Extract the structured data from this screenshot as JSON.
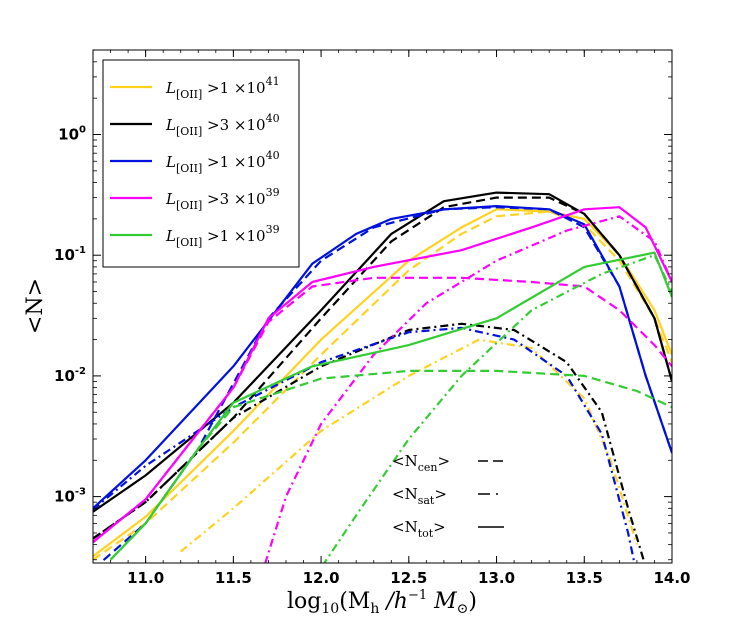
{
  "chart_data": {
    "type": "line",
    "xlabel": "log10(Mh /h−1 M⊙)",
    "ylabel": "<N>",
    "xlim": [
      10.7,
      14.0
    ],
    "ylim_log10": [
      -3.55,
      0.7
    ],
    "xticks": [
      11.0,
      11.5,
      12.0,
      12.5,
      13.0,
      13.5,
      14.0
    ],
    "xtick_labels": [
      "11.0",
      "11.5",
      "12.0",
      "12.5",
      "13.0",
      "13.5",
      "14.0"
    ],
    "yticks": [
      {
        "exp": 0,
        "base": "10",
        "sup": "0"
      },
      {
        "exp": -1,
        "base": "10",
        "sup": "-1"
      },
      {
        "exp": -2,
        "base": "10",
        "sup": "-2"
      },
      {
        "exp": -3,
        "base": "10",
        "sup": "-3"
      }
    ],
    "legend": {
      "location": "upper-left",
      "entries": [
        {
          "color": "#ffd21f",
          "prefix": "L",
          "sub": "[OII]",
          "text": ">1 ×10",
          "sup": "41"
        },
        {
          "color": "#000000",
          "prefix": "L",
          "sub": "[OII]",
          "text": ">3 ×10",
          "sup": "40"
        },
        {
          "color": "#0011dd",
          "prefix": "L",
          "sub": "[OII]",
          "text": ">1 ×10",
          "sup": "40"
        },
        {
          "color": "#ff00ff",
          "prefix": "L",
          "sub": "[OII]",
          "text": ">3 ×10",
          "sup": "39"
        },
        {
          "color": "#33cc33",
          "prefix": "L",
          "sub": "[OII]",
          "text": ">1 ×10",
          "sup": "39"
        }
      ]
    },
    "style_key": [
      {
        "label_main": "<N",
        "label_sub": "cen",
        "label_end": ">",
        "style": "dashed"
      },
      {
        "label_main": "<N",
        "label_sub": "sat",
        "label_end": ">",
        "style": "dashdot"
      },
      {
        "label_main": "<N",
        "label_sub": "tot",
        "label_end": ">",
        "style": "solid"
      }
    ],
    "series": [
      {
        "name": "L[OII]>1e41 tot",
        "color": "#ffd21f",
        "style": "solid",
        "points": [
          [
            10.7,
            0.00032
          ],
          [
            11.0,
            0.00068
          ],
          [
            11.5,
            0.0035
          ],
          [
            12.0,
            0.02
          ],
          [
            12.5,
            0.09
          ],
          [
            12.8,
            0.17
          ],
          [
            13.0,
            0.24
          ],
          [
            13.3,
            0.23
          ],
          [
            13.5,
            0.2
          ],
          [
            13.7,
            0.1
          ],
          [
            13.9,
            0.035
          ],
          [
            14.0,
            0.015
          ]
        ]
      },
      {
        "name": "L[OII]>1e41 cen",
        "color": "#ffd21f",
        "style": "dashed",
        "points": [
          [
            10.7,
            0.0003
          ],
          [
            11.0,
            0.0006
          ],
          [
            11.5,
            0.0028
          ],
          [
            12.0,
            0.015
          ],
          [
            12.5,
            0.075
          ],
          [
            12.8,
            0.15
          ],
          [
            13.0,
            0.21
          ],
          [
            13.3,
            0.23
          ],
          [
            13.5,
            0.18
          ],
          [
            13.7,
            0.09
          ],
          [
            13.9,
            0.03
          ],
          [
            14.0,
            0.013
          ]
        ]
      },
      {
        "name": "L[OII]>1e41 sat",
        "color": "#ffd21f",
        "style": "dashdot",
        "points": [
          [
            11.2,
            0.00035
          ],
          [
            11.5,
            0.0008
          ],
          [
            12.0,
            0.0035
          ],
          [
            12.5,
            0.01
          ],
          [
            12.9,
            0.02
          ],
          [
            13.2,
            0.017
          ],
          [
            13.5,
            0.0065
          ],
          [
            13.65,
            0.002
          ],
          [
            13.8,
            0.0004
          ]
        ]
      },
      {
        "name": "L[OII]>3e40 tot",
        "color": "#000000",
        "style": "solid",
        "points": [
          [
            10.7,
            0.00075
          ],
          [
            11.0,
            0.0015
          ],
          [
            11.5,
            0.006
          ],
          [
            12.0,
            0.035
          ],
          [
            12.4,
            0.15
          ],
          [
            12.7,
            0.28
          ],
          [
            13.0,
            0.33
          ],
          [
            13.3,
            0.32
          ],
          [
            13.5,
            0.22
          ],
          [
            13.7,
            0.1
          ],
          [
            13.9,
            0.03
          ],
          [
            14.0,
            0.009
          ]
        ]
      },
      {
        "name": "L[OII]>3e40 cen",
        "color": "#000000",
        "style": "dashed",
        "points": [
          [
            10.7,
            0.00045
          ],
          [
            11.0,
            0.0009
          ],
          [
            11.5,
            0.0045
          ],
          [
            12.0,
            0.03
          ],
          [
            12.4,
            0.13
          ],
          [
            12.7,
            0.25
          ],
          [
            13.0,
            0.3
          ],
          [
            13.3,
            0.3
          ],
          [
            13.5,
            0.22
          ],
          [
            13.7,
            0.1
          ],
          [
            13.9,
            0.03
          ],
          [
            14.0,
            0.009
          ]
        ]
      },
      {
        "name": "L[OII]>3e40 sat",
        "color": "#000000",
        "style": "dashdot",
        "points": [
          [
            10.7,
            0.00045
          ],
          [
            11.0,
            0.0009
          ],
          [
            11.5,
            0.0045
          ],
          [
            12.0,
            0.012
          ],
          [
            12.5,
            0.024
          ],
          [
            12.8,
            0.027
          ],
          [
            13.1,
            0.024
          ],
          [
            13.4,
            0.013
          ],
          [
            13.6,
            0.005
          ],
          [
            13.75,
            0.0008
          ],
          [
            13.9,
            0.00015
          ]
        ]
      },
      {
        "name": "L[OII]>1e40 tot",
        "color": "#0011dd",
        "style": "solid",
        "points": [
          [
            10.7,
            0.0008
          ],
          [
            11.0,
            0.002
          ],
          [
            11.5,
            0.012
          ],
          [
            11.95,
            0.085
          ],
          [
            12.2,
            0.15
          ],
          [
            12.4,
            0.2
          ],
          [
            12.7,
            0.24
          ],
          [
            13.0,
            0.255
          ],
          [
            13.3,
            0.24
          ],
          [
            13.5,
            0.18
          ],
          [
            13.7,
            0.055
          ],
          [
            13.85,
            0.01
          ],
          [
            14.0,
            0.0023
          ]
        ]
      },
      {
        "name": "L[OII]>1e40 cen",
        "color": "#0011dd",
        "style": "dashed",
        "points": [
          [
            10.7,
            0.00025
          ],
          [
            11.0,
            0.0006
          ],
          [
            11.3,
            0.0025
          ],
          [
            11.7,
            0.03
          ],
          [
            12.0,
            0.09
          ],
          [
            12.3,
            0.17
          ],
          [
            12.7,
            0.24
          ],
          [
            13.0,
            0.25
          ],
          [
            13.3,
            0.24
          ],
          [
            13.5,
            0.17
          ],
          [
            13.7,
            0.055
          ],
          [
            13.85,
            0.01
          ],
          [
            14.0,
            0.0023
          ]
        ]
      },
      {
        "name": "L[OII]>1e40 sat",
        "color": "#0011dd",
        "style": "dashdot",
        "points": [
          [
            10.7,
            0.00078
          ],
          [
            11.0,
            0.0018
          ],
          [
            11.5,
            0.0055
          ],
          [
            12.0,
            0.013
          ],
          [
            12.5,
            0.023
          ],
          [
            12.8,
            0.025
          ],
          [
            13.1,
            0.02
          ],
          [
            13.4,
            0.01
          ],
          [
            13.6,
            0.0033
          ],
          [
            13.75,
            0.0005
          ],
          [
            13.85,
            0.0001
          ]
        ]
      },
      {
        "name": "L[OII]>3e39 tot",
        "color": "#ff00ff",
        "style": "solid",
        "points": [
          [
            10.7,
            0.00042
          ],
          [
            11.0,
            0.00095
          ],
          [
            11.5,
            0.008
          ],
          [
            11.7,
            0.03
          ],
          [
            11.95,
            0.06
          ],
          [
            12.3,
            0.08
          ],
          [
            12.8,
            0.11
          ],
          [
            13.2,
            0.17
          ],
          [
            13.5,
            0.24
          ],
          [
            13.7,
            0.25
          ],
          [
            13.85,
            0.17
          ],
          [
            14.0,
            0.06
          ]
        ]
      },
      {
        "name": "L[OII]>3e39 cen",
        "color": "#ff00ff",
        "style": "dashed",
        "points": [
          [
            10.7,
            0.00042
          ],
          [
            11.0,
            0.00095
          ],
          [
            11.5,
            0.008
          ],
          [
            11.7,
            0.028
          ],
          [
            11.95,
            0.055
          ],
          [
            12.3,
            0.065
          ],
          [
            12.8,
            0.065
          ],
          [
            13.2,
            0.06
          ],
          [
            13.5,
            0.055
          ],
          [
            13.7,
            0.035
          ],
          [
            13.9,
            0.018
          ],
          [
            14.0,
            0.012
          ]
        ]
      },
      {
        "name": "L[OII]>3e39 sat",
        "color": "#ff00ff",
        "style": "dashdot",
        "points": [
          [
            11.65,
            0.0002
          ],
          [
            11.8,
            0.001
          ],
          [
            12.0,
            0.004
          ],
          [
            12.3,
            0.015
          ],
          [
            12.6,
            0.04
          ],
          [
            13.0,
            0.09
          ],
          [
            13.4,
            0.16
          ],
          [
            13.7,
            0.21
          ],
          [
            13.9,
            0.13
          ],
          [
            14.0,
            0.06
          ]
        ]
      },
      {
        "name": "L[OII]>1e39 tot",
        "color": "#33cc33",
        "style": "solid",
        "points": [
          [
            10.8,
            0.0003
          ],
          [
            11.0,
            0.0006
          ],
          [
            11.3,
            0.0025
          ],
          [
            11.5,
            0.006
          ],
          [
            11.95,
            0.012
          ],
          [
            12.5,
            0.018
          ],
          [
            13.0,
            0.03
          ],
          [
            13.5,
            0.08
          ],
          [
            13.9,
            0.105
          ],
          [
            14.0,
            0.045
          ]
        ]
      },
      {
        "name": "L[OII]>1e39 cen",
        "color": "#33cc33",
        "style": "dashed",
        "points": [
          [
            10.8,
            0.0003
          ],
          [
            11.0,
            0.0006
          ],
          [
            11.3,
            0.0025
          ],
          [
            11.5,
            0.0055
          ],
          [
            12.0,
            0.0095
          ],
          [
            12.5,
            0.011
          ],
          [
            13.0,
            0.011
          ],
          [
            13.5,
            0.01
          ],
          [
            13.8,
            0.0075
          ],
          [
            14.0,
            0.0055
          ]
        ]
      },
      {
        "name": "L[OII]>1e39 sat",
        "color": "#33cc33",
        "style": "dashdot",
        "points": [
          [
            11.95,
            0.0002
          ],
          [
            12.2,
            0.0007
          ],
          [
            12.5,
            0.003
          ],
          [
            12.8,
            0.01
          ],
          [
            13.2,
            0.035
          ],
          [
            13.6,
            0.07
          ],
          [
            13.9,
            0.1
          ],
          [
            14.0,
            0.05
          ]
        ]
      }
    ]
  }
}
